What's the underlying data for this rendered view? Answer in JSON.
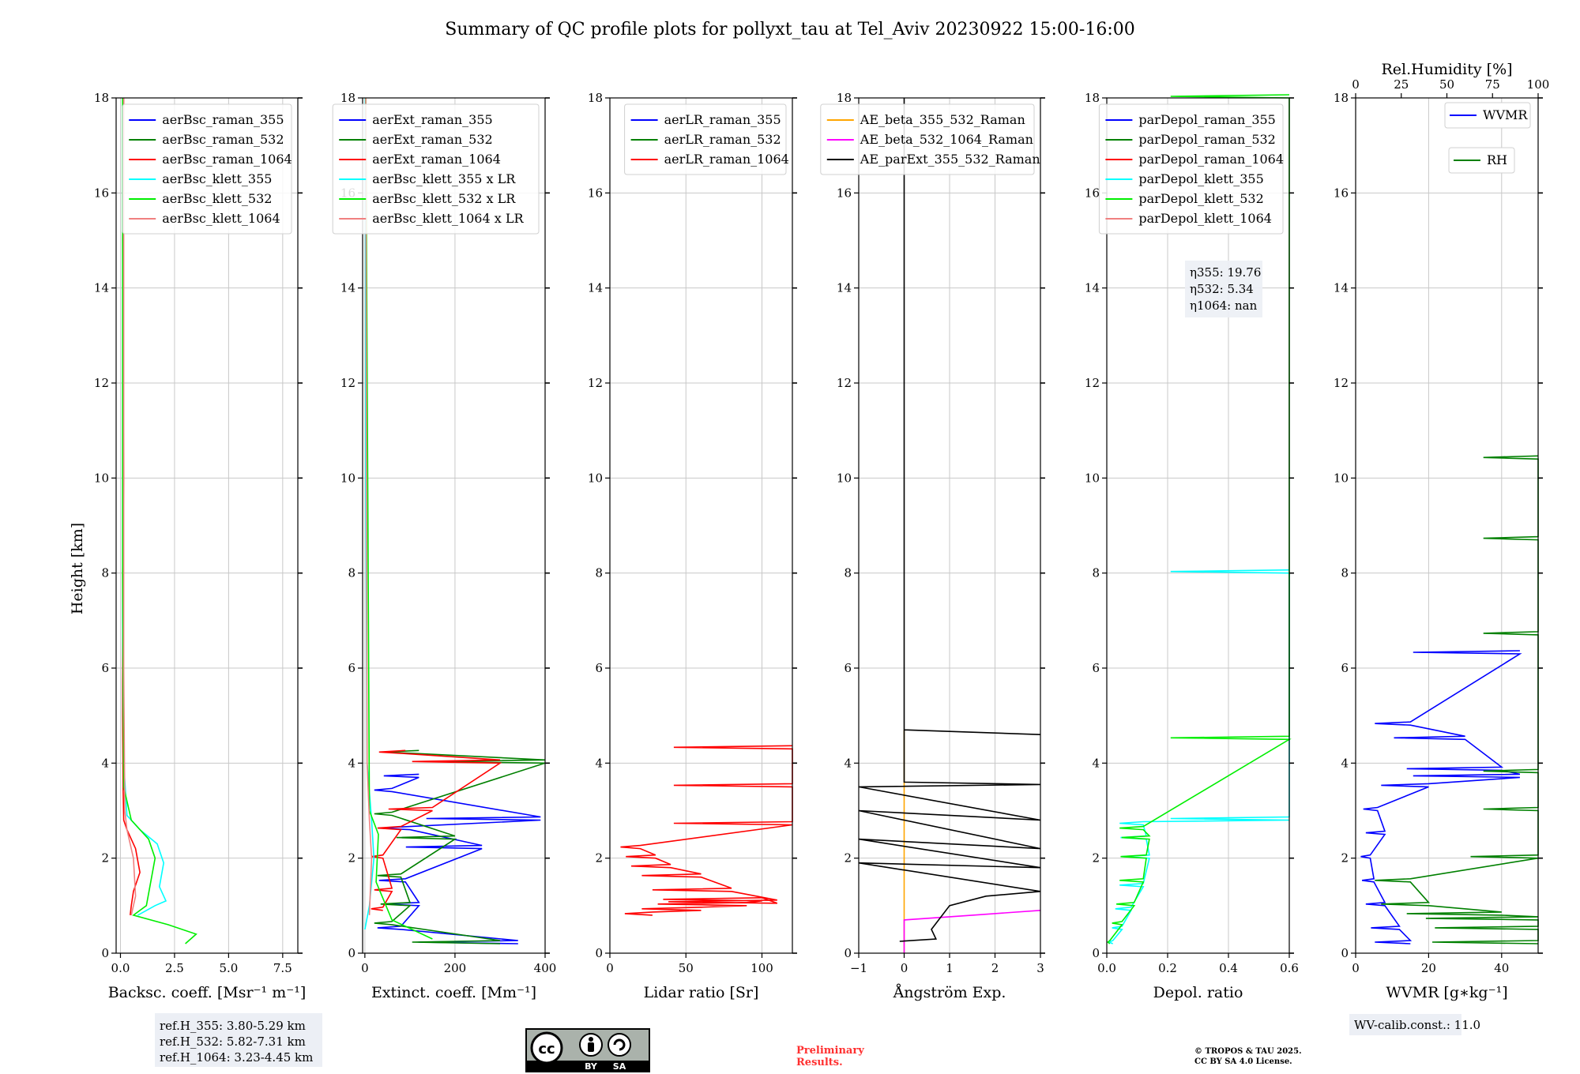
{
  "figure": {
    "title": "Summary of QC profile plots for pollyxt_tau at Tel_Aviv 20230922 15:00-16:00",
    "ylabel": "Height [km]",
    "reference_heights": [
      "ref.H_355: 3.80-5.29 km",
      "ref.H_532: 5.82-7.31 km",
      "ref.H_1064: 3.23-4.45 km"
    ],
    "eta_values": [
      "η355: 19.76",
      "η532: 5.34",
      "η1064: nan"
    ],
    "wv_calib": "WV-calib.const.: 11.0",
    "license_badge": {
      "by": "BY",
      "sa": "SA",
      "cc": "cc"
    },
    "preliminary": [
      "Preliminary",
      "Results."
    ],
    "copyright": [
      "© TROPOS & TAU 2025.",
      "CC BY SA 4.0 License."
    ]
  },
  "chart_data": [
    {
      "type": "line",
      "xlabel": "Backsc. coeff. [Msr⁻¹ m⁻¹]",
      "ylabel": "Height [km]",
      "xlim": [
        -0.2,
        8.2
      ],
      "ylim": [
        0,
        18
      ],
      "xticks": [
        "0.0",
        "2.5",
        "5.0",
        "7.5"
      ],
      "xtick_values": [
        0,
        2.5,
        5,
        7.5
      ],
      "yticks": [
        "0",
        "2",
        "4",
        "6",
        "8",
        "10",
        "12",
        "14",
        "16",
        "18"
      ],
      "legend_position": "top-right",
      "series": [
        {
          "name": "aerBsc_raman_355",
          "color": "#0000ff",
          "x": [],
          "y": []
        },
        {
          "name": "aerBsc_raman_532",
          "color": "#008000",
          "x": [],
          "y": []
        },
        {
          "name": "aerBsc_raman_1064",
          "color": "#ff0000",
          "x": [
            0.45,
            0.5,
            0.6,
            0.9,
            0.7,
            0.3,
            0.15,
            0.12,
            0.1,
            0.1,
            0.15,
            0.12,
            0.1,
            0.15
          ],
          "y": [
            0.8,
            1.0,
            1.3,
            1.7,
            2.2,
            2.6,
            2.8,
            3.5,
            5.0,
            8.0,
            10.0,
            12.0,
            15.0,
            18.0
          ]
        },
        {
          "name": "aerBsc_klett_355",
          "color": "#00ffff",
          "x": [
            0.8,
            1.6,
            2.1,
            1.8,
            2.0,
            1.7,
            0.9,
            0.3,
            0.15,
            0.1,
            0.1,
            0.1
          ],
          "y": [
            0.8,
            1.0,
            1.1,
            1.4,
            1.9,
            2.3,
            2.6,
            2.9,
            4.0,
            7.0,
            12.0,
            18.0
          ]
        },
        {
          "name": "aerBsc_klett_532",
          "color": "#00ee00",
          "x": [
            3.0,
            3.5,
            2.2,
            0.6,
            1.2,
            1.4,
            1.6,
            1.3,
            0.5,
            0.15,
            0.1,
            0.1
          ],
          "y": [
            0.2,
            0.4,
            0.6,
            0.8,
            1.0,
            1.5,
            2.0,
            2.4,
            2.8,
            3.5,
            8.0,
            18.0
          ]
        },
        {
          "name": "aerBsc_klett_1064",
          "color": "#f08080",
          "x": [
            0.5,
            0.7,
            0.6,
            0.3,
            0.2,
            0.15,
            0.15
          ],
          "y": [
            0.8,
            1.2,
            2.0,
            2.6,
            3.0,
            6.0,
            18.0
          ]
        }
      ]
    },
    {
      "type": "line",
      "xlabel": "Extinct. coeff. [Mm⁻¹]",
      "xlim": [
        -5,
        400
      ],
      "ylim": [
        0,
        18
      ],
      "xticks": [
        "0",
        "200",
        "400"
      ],
      "xtick_values": [
        0,
        200,
        400
      ],
      "yticks": [
        "0",
        "2",
        "4",
        "6",
        "8",
        "10",
        "12",
        "14",
        "16",
        "18"
      ],
      "legend_position": "top-right",
      "series": [
        {
          "name": "aerExt_raman_355",
          "color": "#0000ff",
          "x": [
            340,
            80,
            120,
            90,
            260,
            100,
            390,
            60,
            120
          ],
          "y": [
            0.2,
            0.5,
            1.0,
            1.5,
            2.2,
            2.6,
            2.8,
            3.4,
            3.7
          ],
          "style": "spiky"
        },
        {
          "name": "aerExt_raman_532",
          "color": "#008000",
          "x": [
            300,
            60,
            100,
            80,
            200,
            60,
            400,
            120
          ],
          "y": [
            0.2,
            0.6,
            1.0,
            1.6,
            2.4,
            2.9,
            4.0,
            4.2
          ],
          "style": "spiky"
        },
        {
          "name": "aerExt_raman_1064",
          "color": "#ff0000",
          "x": [
            40,
            60,
            40,
            80,
            150,
            300,
            90
          ],
          "y": [
            0.9,
            1.3,
            2.0,
            2.6,
            3.0,
            4.0,
            4.2
          ],
          "style": "spiky"
        },
        {
          "name": "aerBsc_klett_355 x LR",
          "color": "#00ffff",
          "x": [
            0,
            10,
            20,
            15,
            5,
            2,
            1
          ],
          "y": [
            0.5,
            1.0,
            2.0,
            2.8,
            4.0,
            10.0,
            18.0
          ]
        },
        {
          "name": "aerBsc_klett_532 x LR",
          "color": "#00ee00",
          "x": [
            150,
            60,
            25,
            30,
            10,
            2
          ],
          "y": [
            0.3,
            0.7,
            1.5,
            2.5,
            3.0,
            18.0
          ]
        },
        {
          "name": "aerBsc_klett_1064 x LR",
          "color": "#f08080",
          "x": [
            10,
            15,
            10,
            5,
            2
          ],
          "y": [
            0.8,
            2.0,
            2.8,
            4.0,
            18.0
          ]
        }
      ]
    },
    {
      "type": "line",
      "xlabel": "Lidar ratio [Sr]",
      "xlim": [
        0,
        120
      ],
      "ylim": [
        0,
        18
      ],
      "xticks": [
        "0",
        "50",
        "100"
      ],
      "xtick_values": [
        0,
        50,
        100
      ],
      "yticks": [
        "0",
        "2",
        "4",
        "6",
        "8",
        "10",
        "12",
        "14",
        "16",
        "18"
      ],
      "legend_position": "top-right",
      "series": [
        {
          "name": "aerLR_raman_355",
          "color": "#0000ff",
          "x": [],
          "y": []
        },
        {
          "name": "aerLR_raman_532",
          "color": "#008000",
          "x": [],
          "y": []
        },
        {
          "name": "aerLR_raman_1064",
          "color": "#ff0000",
          "x": [
            28,
            60,
            90,
            100,
            110,
            80,
            60,
            40,
            30,
            20,
            120,
            120,
            120
          ],
          "y": [
            0.8,
            0.9,
            1.0,
            1.1,
            1.05,
            1.3,
            1.6,
            1.8,
            2.0,
            2.2,
            2.7,
            3.5,
            4.3
          ],
          "style": "spiky"
        }
      ]
    },
    {
      "type": "line",
      "xlabel": "Ångström Exp.",
      "xlim": [
        -1,
        3
      ],
      "ylim": [
        0,
        18
      ],
      "xticks": [
        "−1",
        "0",
        "1",
        "2",
        "3"
      ],
      "xtick_values": [
        -1,
        0,
        1,
        2,
        3
      ],
      "yticks": [
        "0",
        "2",
        "4",
        "6",
        "8",
        "10",
        "12",
        "14",
        "16",
        "18"
      ],
      "legend_position": "top-right",
      "series": [
        {
          "name": "AE_beta_355_532_Raman",
          "color": "#ffa500",
          "x": [
            0,
            0
          ],
          "y": [
            0,
            4.7
          ]
        },
        {
          "name": "AE_beta_532_1064_Raman",
          "color": "#ff00ff",
          "x": [
            0,
            0,
            1.5,
            3.0
          ],
          "y": [
            0,
            0.7,
            0.8,
            0.9
          ]
        },
        {
          "name": "AE_parExt_355_532_Raman",
          "color": "#000000",
          "x": [
            -0.1,
            0.7,
            0.6,
            1.0,
            1.8,
            3.0,
            -1,
            3.0,
            -1,
            3.0,
            -1,
            3.0,
            -1,
            3.0,
            0,
            0,
            3.0,
            0,
            0
          ],
          "y": [
            0.25,
            0.3,
            0.5,
            1.0,
            1.2,
            1.3,
            1.9,
            1.8,
            2.4,
            2.2,
            3.0,
            2.8,
            3.5,
            3.55,
            3.6,
            4.7,
            4.6,
            4.7,
            18.0
          ]
        }
      ]
    },
    {
      "type": "line",
      "xlabel": "Depol. ratio",
      "xlim": [
        0,
        0.6
      ],
      "ylim": [
        0,
        18
      ],
      "xticks": [
        "0.0",
        "0.2",
        "0.4",
        "0.6"
      ],
      "xtick_values": [
        0,
        0.2,
        0.4,
        0.6
      ],
      "yticks": [
        "0",
        "2",
        "4",
        "6",
        "8",
        "10",
        "12",
        "14",
        "16",
        "18"
      ],
      "legend_position": "top-right",
      "series": [
        {
          "name": "parDepol_raman_355",
          "color": "#0000ff",
          "x": [],
          "y": []
        },
        {
          "name": "parDepol_raman_532",
          "color": "#008000",
          "x": [],
          "y": []
        },
        {
          "name": "parDepol_raman_1064",
          "color": "#ff0000",
          "x": [],
          "y": []
        },
        {
          "name": "parDepol_klett_355",
          "color": "#00ffff",
          "x": [
            0.02,
            0.05,
            0.08,
            0.12,
            0.14,
            0.13,
            0.12,
            0.6,
            0.6
          ],
          "y": [
            0.2,
            0.5,
            0.9,
            1.4,
            2.0,
            2.4,
            2.7,
            2.8,
            8.0
          ],
          "style": "spiky"
        },
        {
          "name": "parDepol_klett_532",
          "color": "#00ee00",
          "x": [
            0.01,
            0.05,
            0.09,
            0.12,
            0.13,
            0.14,
            0.12,
            0.6,
            0.6
          ],
          "y": [
            0.2,
            0.6,
            1.0,
            1.5,
            2.0,
            2.4,
            2.6,
            4.5,
            18.0
          ],
          "style": "spiky"
        },
        {
          "name": "parDepol_klett_1064",
          "color": "#f08080",
          "x": [],
          "y": []
        }
      ]
    },
    {
      "type": "line",
      "xlabel": "WVMR [g∗kg⁻¹]",
      "x2label": "Rel.Humidity [%]",
      "xlim": [
        0,
        50
      ],
      "ylim": [
        0,
        18
      ],
      "x2lim": [
        0,
        100
      ],
      "xticks": [
        "0",
        "20",
        "40"
      ],
      "xtick_values": [
        0,
        20,
        40
      ],
      "x2ticks": [
        "0",
        "25",
        "50",
        "75",
        "100"
      ],
      "x2tick_values": [
        0,
        25,
        50,
        75,
        100
      ],
      "yticks": [
        "0",
        "2",
        "4",
        "6",
        "8",
        "10",
        "12",
        "14",
        "16",
        "18"
      ],
      "legend_position": "top-right",
      "series": [
        {
          "name": "WVMR",
          "color": "#0000ff",
          "x": [
            15,
            12,
            8,
            5,
            4,
            8,
            6,
            20,
            45,
            40,
            30,
            15,
            45
          ],
          "y": [
            0.2,
            0.5,
            1.0,
            1.5,
            2.0,
            2.5,
            3.0,
            3.5,
            3.7,
            3.85,
            4.5,
            4.8,
            6.3
          ],
          "style": "spiky"
        },
        {
          "name": "RH",
          "color": "#008000",
          "x": [
            60,
            62,
            55,
            40,
            20,
            15,
            90,
            100,
            100,
            100,
            100,
            100
          ],
          "y": [
            0.2,
            0.5,
            0.7,
            0.8,
            1.0,
            1.5,
            2.0,
            3.0,
            3.8,
            6.7,
            8.7,
            10.4
          ],
          "style": "spiky"
        }
      ]
    }
  ]
}
